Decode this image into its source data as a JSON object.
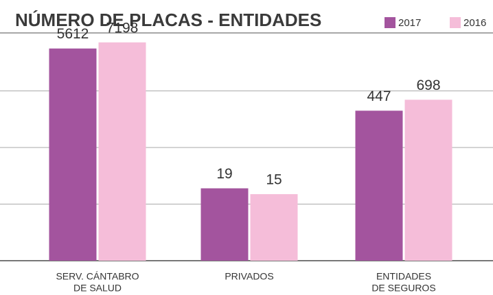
{
  "chart_data": {
    "type": "bar",
    "title": "NÚMERO DE PLACAS - ENTIDADES",
    "categories": [
      [
        "SERV. CÁNTABRO",
        "DE SALUD"
      ],
      [
        "PRIVADOS"
      ],
      [
        "ENTIDADES",
        "DE SEGUROS"
      ]
    ],
    "series": [
      {
        "name": "2017",
        "color": "#a3549e",
        "values": [
          5612,
          19,
          447
        ]
      },
      {
        "name": "2016",
        "color": "#f5bdd9",
        "values": [
          7198,
          15,
          698
        ]
      }
    ],
    "log_scale": true,
    "ylim": [
      1,
      10000
    ],
    "yticks": [
      1,
      10,
      100,
      1000
    ],
    "grid": true
  }
}
